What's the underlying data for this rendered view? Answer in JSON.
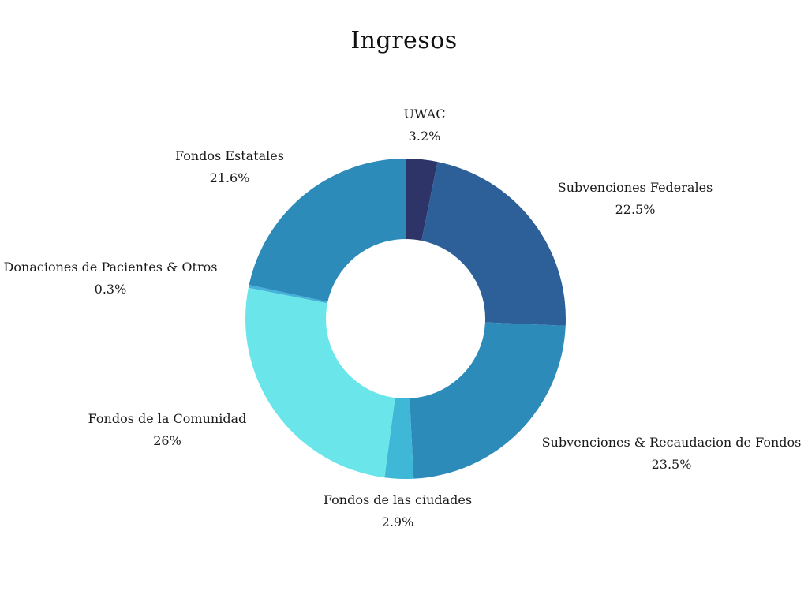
{
  "chart_data": {
    "type": "pie",
    "title": "Ingresos",
    "donut": true,
    "legend": "none",
    "slices": [
      {
        "label": "UWAC",
        "percent_label": "3.2%",
        "value": 3.2,
        "color": "#2e3468"
      },
      {
        "label": "Subvenciones Federales",
        "percent_label": "22.5%",
        "value": 22.5,
        "color": "#2d5f99"
      },
      {
        "label": "Subvenciones & Recaudacion de Fondos",
        "percent_label": "23.5%",
        "value": 23.5,
        "color": "#2d8bba"
      },
      {
        "label": "Fondos de las ciudades",
        "percent_label": "2.9%",
        "value": 2.9,
        "color": "#3fb8d8"
      },
      {
        "label": "Fondos de la Comunidad",
        "percent_label": "26%",
        "value": 26,
        "color": "#6ae6ea"
      },
      {
        "label": "Donaciones de Pacientes & Otros",
        "percent_label": "0.3%",
        "value": 0.3,
        "color": "#44b3dc"
      },
      {
        "label": "Fondos Estatales",
        "percent_label": "21.6%",
        "value": 21.6,
        "color": "#2d8bba"
      }
    ]
  }
}
